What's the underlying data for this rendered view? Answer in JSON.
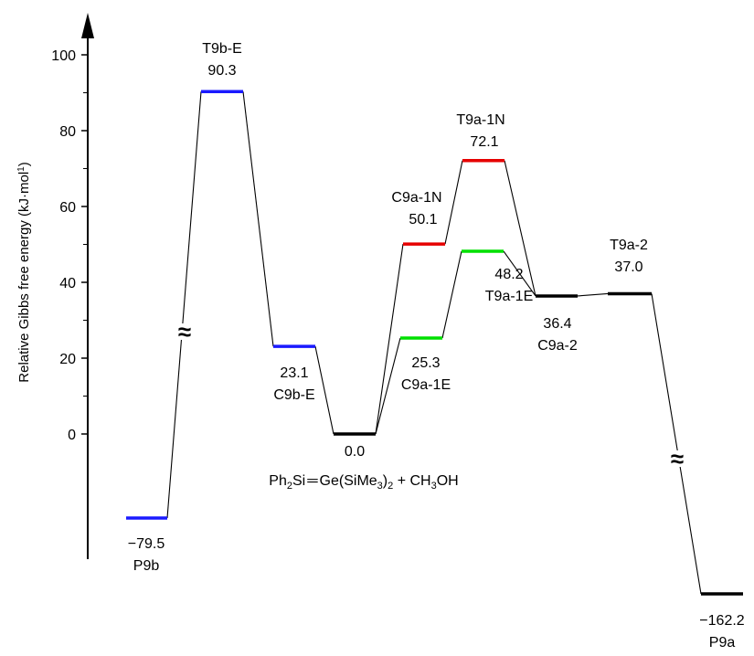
{
  "chart_data": {
    "type": "energy_profile",
    "ylabel_main": "Relative Gibbs free energy (kJ·mol",
    "ylabel_sup": "1",
    "ylabel_tail": ")",
    "yticks": [
      0,
      20,
      40,
      60,
      80,
      100
    ],
    "yticks_text": [
      "0",
      "20",
      "40",
      "60",
      "80",
      "100"
    ],
    "ylim": [
      -38,
      113
    ],
    "break_symbol": "≈",
    "reactants_parts": [
      "Ph",
      "2",
      "Si",
      "Ge(SiMe",
      "3",
      ")",
      "2",
      " + CH",
      "3",
      "OH"
    ],
    "states": [
      {
        "id": "P9b",
        "name": "P9b",
        "value": -79.5,
        "value_text": "−79.5",
        "color": "#1a1aff",
        "broken": true
      },
      {
        "id": "T9bE",
        "name": "T9b-E",
        "value": 90.3,
        "value_text": "90.3",
        "color": "#1a1aff"
      },
      {
        "id": "C9bE",
        "name": "C9b-E",
        "value": 23.1,
        "value_text": "23.1",
        "color": "#1a1aff"
      },
      {
        "id": "R",
        "name": "",
        "value": 0.0,
        "value_text": "0.0",
        "color": "#000000"
      },
      {
        "id": "C9a1E",
        "name": "C9a-1E",
        "value": 25.3,
        "value_text": "25.3",
        "color": "#00e000"
      },
      {
        "id": "C9a1N",
        "name": "C9a-1N",
        "value": 50.1,
        "value_text": "50.1",
        "color": "#e60000"
      },
      {
        "id": "T9a1E",
        "name": "T9a-1E",
        "value": 48.2,
        "value_text": "48.2",
        "color": "#00e000"
      },
      {
        "id": "T9a1N",
        "name": "T9a-1N",
        "value": 72.1,
        "value_text": "72.1",
        "color": "#e60000"
      },
      {
        "id": "C9a2",
        "name": "C9a-2",
        "value": 36.4,
        "value_text": "36.4",
        "color": "#000000"
      },
      {
        "id": "T9a2",
        "name": "T9a-2",
        "value": 37.0,
        "value_text": "37.0",
        "color": "#000000"
      },
      {
        "id": "P9a",
        "name": "P9a",
        "value": -162.2,
        "value_text": "−162.2",
        "color": "#000000",
        "broken": true
      }
    ],
    "connections": [
      [
        "P9b",
        "T9bE"
      ],
      [
        "T9bE",
        "C9bE"
      ],
      [
        "C9bE",
        "R"
      ],
      [
        "R",
        "C9a1E"
      ],
      [
        "R",
        "C9a1N"
      ],
      [
        "C9a1E",
        "T9a1E"
      ],
      [
        "C9a1N",
        "T9a1N"
      ],
      [
        "T9a1E",
        "C9a2"
      ],
      [
        "T9a1N",
        "C9a2"
      ],
      [
        "C9a2",
        "T9a2"
      ],
      [
        "T9a2",
        "P9a"
      ]
    ]
  }
}
